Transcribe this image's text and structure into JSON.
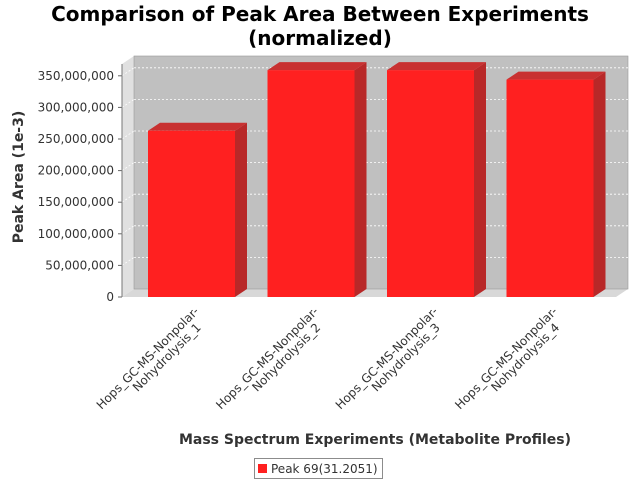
{
  "chart_data": {
    "type": "bar",
    "title_lines": [
      "Comparison of Peak Area Between Experiments",
      "(normalized)"
    ],
    "xlabel": "Mass Spectrum Experiments (Metabolite Profiles)",
    "ylabel": "Peak Area (1e-3)",
    "categories": [
      [
        "Hops_GC-MS-Nonpolar-",
        "Nohydrolysis_1"
      ],
      [
        "Hops_GC-MS-Nonpolar-",
        "Nohydrolysis_2"
      ],
      [
        "Hops_GC-MS-Nonpolar-",
        "Nohydrolysis_3"
      ],
      [
        "Hops_GC-MS-Nonpolar-",
        "Nohydrolysis_4"
      ]
    ],
    "series": [
      {
        "name": "Peak 69(31.2051)",
        "values": [
          263000000,
          359000000,
          359000000,
          344000000
        ]
      }
    ],
    "ylim": [
      0,
      375000000
    ],
    "yticks": [
      0,
      50000000,
      100000000,
      150000000,
      200000000,
      250000000,
      300000000,
      350000000
    ],
    "ytick_labels": [
      "0",
      "50,000,000",
      "100,000,000",
      "150,000,000",
      "200,000,000",
      "250,000,000",
      "300,000,000",
      "350,000,000"
    ],
    "grid": true,
    "legend_position": "bottom",
    "colors": {
      "bar": "#ff2020",
      "bar_side": "#b82828",
      "bar_top": "#c83030",
      "plot_bg": "#c0c0c0",
      "wall": "#e0e0e0"
    }
  }
}
